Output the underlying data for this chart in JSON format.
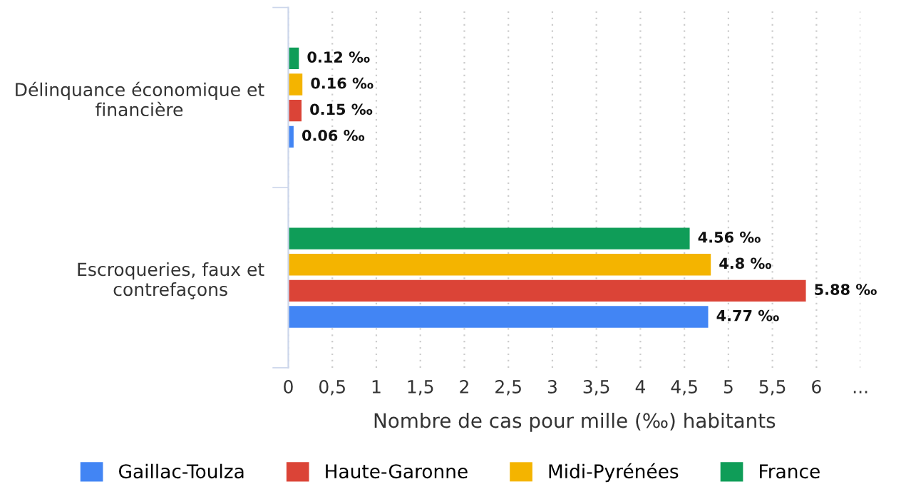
{
  "chart_data": {
    "type": "bar",
    "orientation": "horizontal",
    "xlabel": "Nombre de cas pour mille (‰) habitants",
    "categories": [
      "Délinquance économique et financière",
      "Escroqueries, faux et contrefaçons"
    ],
    "series": [
      {
        "name": "Gaillac-Toulza",
        "color": "#4285f4",
        "values": [
          0.06,
          4.77
        ],
        "value_labels": [
          "0.06 ‰",
          "4.77 ‰"
        ]
      },
      {
        "name": "Haute-Garonne",
        "color": "#db4437",
        "values": [
          0.15,
          5.88
        ],
        "value_labels": [
          "0.15 ‰",
          "5.88 ‰"
        ]
      },
      {
        "name": "Midi-Pyrénées",
        "color": "#f4b400",
        "values": [
          0.16,
          4.8
        ],
        "value_labels": [
          "0.16 ‰",
          "4.8 ‰"
        ]
      },
      {
        "name": "France",
        "color": "#0f9d58",
        "values": [
          0.12,
          4.56
        ],
        "value_labels": [
          "0.12 ‰",
          "4.56 ‰"
        ]
      }
    ],
    "xlim": [
      0,
      6.5
    ],
    "xticks": [
      0,
      {
        "value": 0.5,
        "label": "0,5"
      },
      1,
      {
        "value": 1.5,
        "label": "1,5"
      },
      2,
      {
        "value": 2.5,
        "label": "2,5"
      },
      3,
      {
        "value": 3.5,
        "label": "3,5"
      },
      4,
      {
        "value": 4.5,
        "label": "4,5"
      },
      5,
      {
        "value": 5.5,
        "label": "5,5"
      },
      6,
      {
        "value": 6.5,
        "label": "..."
      }
    ],
    "grid": "x",
    "legend": "bottom"
  }
}
